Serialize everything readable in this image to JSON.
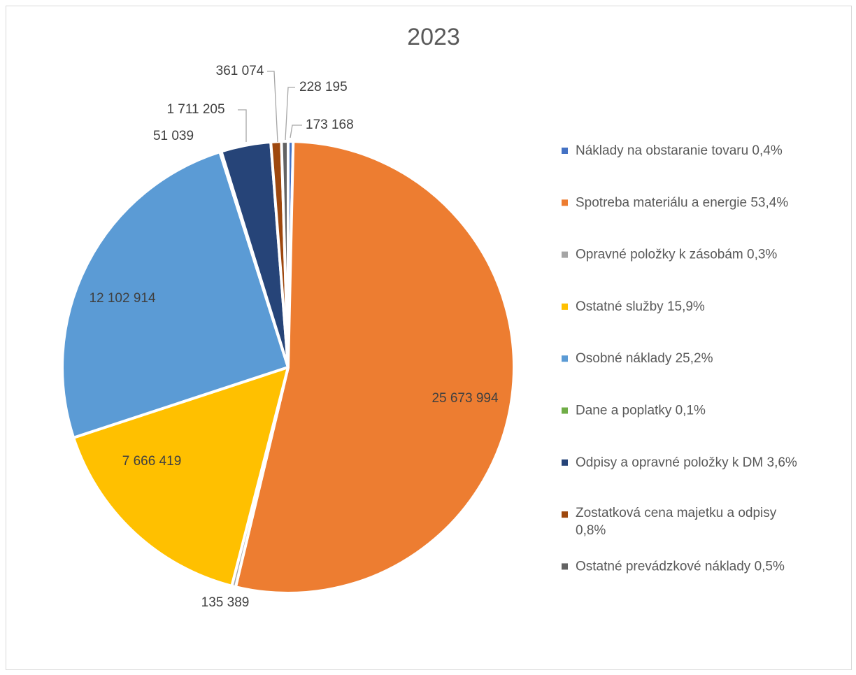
{
  "chart_data": {
    "type": "pie",
    "title": "2023",
    "legend_position": "right",
    "slices": [
      {
        "name": "Náklady na obstaranie tovaru",
        "value": 173168,
        "label": "173 168",
        "legend_label": "Náklady na obstaranie tovaru 0,4%",
        "color": "#4472C4"
      },
      {
        "name": "Spotreba materiálu a energie",
        "value": 25673994,
        "label": "25 673 994",
        "legend_label": "Spotreba materiálu a energie 53,4%",
        "color": "#ED7D31"
      },
      {
        "name": "Opravné položky k zásobám",
        "value": 135389,
        "label": "135 389",
        "legend_label": "Opravné položky k zásobám 0,3%",
        "color": "#A5A5A5"
      },
      {
        "name": "Ostatné služby",
        "value": 7666419,
        "label": "7 666 419",
        "legend_label": "Ostatné služby 15,9%",
        "color": "#FFC000"
      },
      {
        "name": "Osobné náklady",
        "value": 12102914,
        "label": "12 102 914",
        "legend_label": "Osobné náklady 25,2%",
        "color": "#5B9BD5"
      },
      {
        "name": "Dane a poplatky",
        "value": 51039,
        "label": "51 039",
        "legend_label": "Dane a poplatky 0,1%",
        "color": "#70AD47"
      },
      {
        "name": "Odpisy a opravné položky k DM",
        "value": 1711205,
        "label": "1 711 205",
        "legend_label": "Odpisy a opravné položky k DM 3,6%",
        "color": "#264478"
      },
      {
        "name": "Zostatková cena majetku a odpisy",
        "value": 361074,
        "label": "361 074",
        "legend_label": [
          "Zostatková cena majetku a odpisy",
          "0,8%"
        ],
        "color": "#9E480E"
      },
      {
        "name": "Ostatné prevádzkové náklady",
        "value": 228195,
        "label": "228 195",
        "legend_label": "Ostatné prevádzkové náklady 0,5%",
        "color": "#636363"
      }
    ]
  }
}
